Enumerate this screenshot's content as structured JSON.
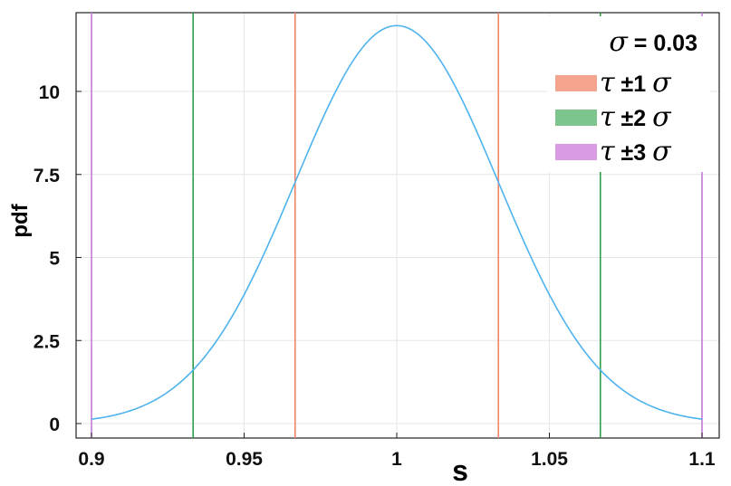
{
  "chart_data": {
    "type": "line",
    "xlabel": "s",
    "ylabel": "pdf",
    "xlim": [
      0.9,
      1.1
    ],
    "ylim": [
      0,
      12.2
    ],
    "x_ticks": [
      0.9,
      0.95,
      1,
      1.05,
      1.1
    ],
    "x_tick_labels": [
      "0.9",
      "0.95",
      "1",
      "1.05",
      "1.1"
    ],
    "y_ticks": [
      0,
      2.5,
      5,
      7.5,
      10
    ],
    "y_tick_labels": [
      "0",
      "2.5",
      "5",
      "7.5",
      "10"
    ],
    "grid": true,
    "legend_position": "top-right",
    "curve": {
      "distribution": "normal",
      "mean": 1.0,
      "sigma": 0.0333,
      "color": "#4fb3ee",
      "x_range": [
        0.9,
        1.1
      ]
    },
    "legend": {
      "header": {
        "symbol": "σ",
        "text": " = 0.03"
      },
      "items": [
        {
          "symbol": "τ",
          "text": " ±1 ",
          "sigma": "σ",
          "color": "#f4a48c"
        },
        {
          "symbol": "τ",
          "text": " ±2 ",
          "sigma": "σ",
          "color": "#7ec48e"
        },
        {
          "symbol": "τ",
          "text": " ±3 ",
          "sigma": "σ",
          "color": "#d99be3"
        }
      ]
    },
    "vlines": [
      {
        "x": 0.9667,
        "color": "#f4836a",
        "group": "±1σ"
      },
      {
        "x": 1.0333,
        "color": "#f4836a",
        "group": "±1σ"
      },
      {
        "x": 0.9333,
        "color": "#2e9e4a",
        "group": "±2σ"
      },
      {
        "x": 1.0667,
        "color": "#2e9e4a",
        "group": "±2σ"
      },
      {
        "x": 0.9,
        "color": "#c27ad8",
        "group": "±3σ"
      },
      {
        "x": 1.1,
        "color": "#c27ad8",
        "group": "±3σ"
      }
    ]
  }
}
